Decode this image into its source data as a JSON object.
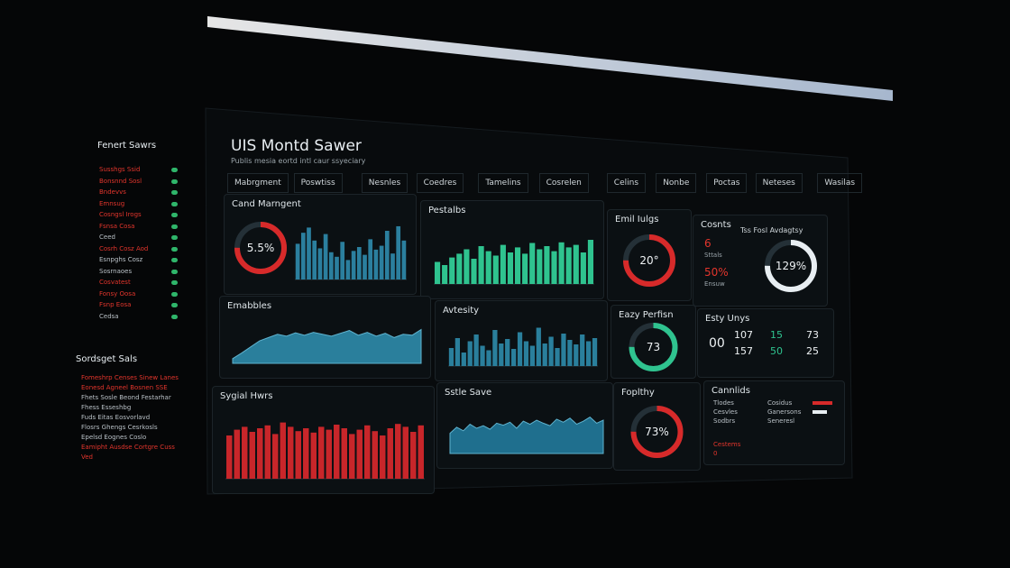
{
  "header": {
    "title": "UIS Montd Sawer",
    "subtitle": "Publis mesia eortd intl caur ssyeciary"
  },
  "tabs": [
    "Mabrgment",
    "Poswtiss",
    "Nesnles",
    "Coedres",
    "Tamelins",
    "Cosrelen",
    "Celins",
    "Nonbe",
    "Poctas",
    "Neteses",
    "Wasilas"
  ],
  "sidebar": {
    "title": "Fenert Sawrs",
    "items": [
      {
        "text": "Susshgs Ssid",
        "color": "#e2352c"
      },
      {
        "text": "Bonsnnd Sosl",
        "color": "#e2352c"
      },
      {
        "text": "Bndevvs",
        "color": "#e2352c"
      },
      {
        "text": "Emnsug",
        "color": "#e2352c"
      },
      {
        "text": "Cosngsl Irogs",
        "color": "#e2352c"
      },
      {
        "text": "Fsnsa Cosa",
        "color": "#e2352c"
      },
      {
        "text": "Ceed",
        "color": "#b9c0c6"
      },
      {
        "text": "Cosrh Cosz Aod",
        "color": "#e2352c"
      },
      {
        "text": "Esnpghs Cosz",
        "color": "#b9c0c6"
      },
      {
        "text": "Sosrnaoes",
        "color": "#b9c0c6"
      },
      {
        "text": "Cosvatest",
        "color": "#e2352c"
      },
      {
        "text": "Fonsy Oosa",
        "color": "#e2352c"
      },
      {
        "text": "Fsnp Eosa",
        "color": "#e2352c"
      },
      {
        "text": "Cedsa",
        "color": "#b9c0c6"
      }
    ],
    "section": "Sordsget Sals",
    "section_items": [
      {
        "text": "Fomeshrp Censes Sinew Lanes",
        "color": "#e2352c"
      },
      {
        "text": "Eonesd Agneel Bosnen SSE",
        "color": "#e2352c"
      },
      {
        "text": "Fhets Sosle Beond Festarhar",
        "color": "#b9c0c6"
      },
      {
        "text": "Fhess Esseshbg",
        "color": "#b9c0c6"
      },
      {
        "text": "Fuds Eitas Eosvorlavd",
        "color": "#b9c0c6"
      },
      {
        "text": "Flosrs Ghengs Cesrkosls",
        "color": "#b9c0c6"
      },
      {
        "text": "Epelsd Eognes  Coslo",
        "color": "#b9c0c6"
      },
      {
        "text": "Eamipht Ausdse Cortgre Cuss",
        "color": "#e2352c"
      },
      {
        "text": "Ved",
        "color": "#e2352c"
      }
    ]
  },
  "panels": [
    {
      "title": "Cand Marngent",
      "ring": "5.5%",
      "chart": {
        "type": "bar",
        "color": "#2b7f9e",
        "ylim": [
          0,
          100
        ],
        "values": [
          55,
          72,
          80,
          60,
          48,
          70,
          42,
          35,
          58,
          30,
          44,
          50,
          38,
          62,
          46,
          52,
          75,
          40,
          82,
          60
        ]
      }
    },
    {
      "title": "Pestalbs",
      "chart": {
        "type": "bar",
        "color": "#2fc38f",
        "ylim": [
          0,
          100
        ],
        "values": [
          35,
          30,
          42,
          48,
          55,
          40,
          60,
          52,
          45,
          62,
          50,
          58,
          48,
          65,
          55,
          60,
          52,
          66,
          58,
          62,
          50,
          70
        ]
      }
    },
    {
      "title": "Emil Iulgs",
      "ring": "20°"
    },
    {
      "title": "Cosnts",
      "stats": [
        "6",
        "Sttals",
        "50%",
        "Ensuw"
      ],
      "subtitle": "Tss Fosl Avdagtsy",
      "ring": "129%"
    },
    {
      "title": "Emabbles",
      "chart": {
        "type": "area",
        "color": "#2a7f9c",
        "ylim": [
          0,
          100
        ],
        "values": [
          10,
          22,
          35,
          48,
          55,
          62,
          58,
          65,
          60,
          66,
          62,
          58,
          64,
          70,
          60,
          66,
          58,
          64,
          55,
          62,
          60,
          72
        ]
      }
    },
    {
      "title": "Avtesity",
      "chart": {
        "type": "bar",
        "color": "#2a7f9c",
        "ylim": [
          0,
          100
        ],
        "values": [
          40,
          62,
          30,
          55,
          70,
          45,
          35,
          80,
          50,
          60,
          38,
          75,
          55,
          45,
          85,
          50,
          65,
          40,
          72,
          58,
          48,
          70,
          55,
          62
        ]
      }
    },
    {
      "title": "Eazy Perfisn",
      "ring": "73"
    },
    {
      "title": "Esty Unys",
      "stats": [
        "00",
        "107",
        "15",
        "73",
        "157",
        "50",
        "25"
      ]
    },
    {
      "title": "Sygial Hwrs",
      "chart": {
        "type": "bar",
        "color": "#c8262a",
        "ylim": [
          0,
          100
        ],
        "values": [
          60,
          68,
          72,
          65,
          70,
          74,
          62,
          78,
          72,
          66,
          70,
          64,
          72,
          68,
          75,
          70,
          62,
          68,
          74,
          66,
          60,
          70,
          76,
          72,
          65,
          74
        ]
      }
    },
    {
      "title": "Sstle Save",
      "chart": {
        "type": "area",
        "color": "#1f6f8e",
        "ylim": [
          0,
          100
        ],
        "values": [
          40,
          52,
          45,
          58,
          50,
          55,
          48,
          60,
          56,
          62,
          50,
          64,
          58,
          66,
          60,
          55,
          68,
          62,
          70,
          58,
          64,
          72,
          60,
          66
        ]
      }
    },
    {
      "title": "Foplthy",
      "ring": "73%"
    },
    {
      "title": "Cannlids",
      "list": [
        "Tlodes",
        "Cesvles",
        "Sodbrs",
        "Cosidus",
        "Ganersons",
        "Seneresl",
        "Cestems",
        "0"
      ]
    }
  ]
}
